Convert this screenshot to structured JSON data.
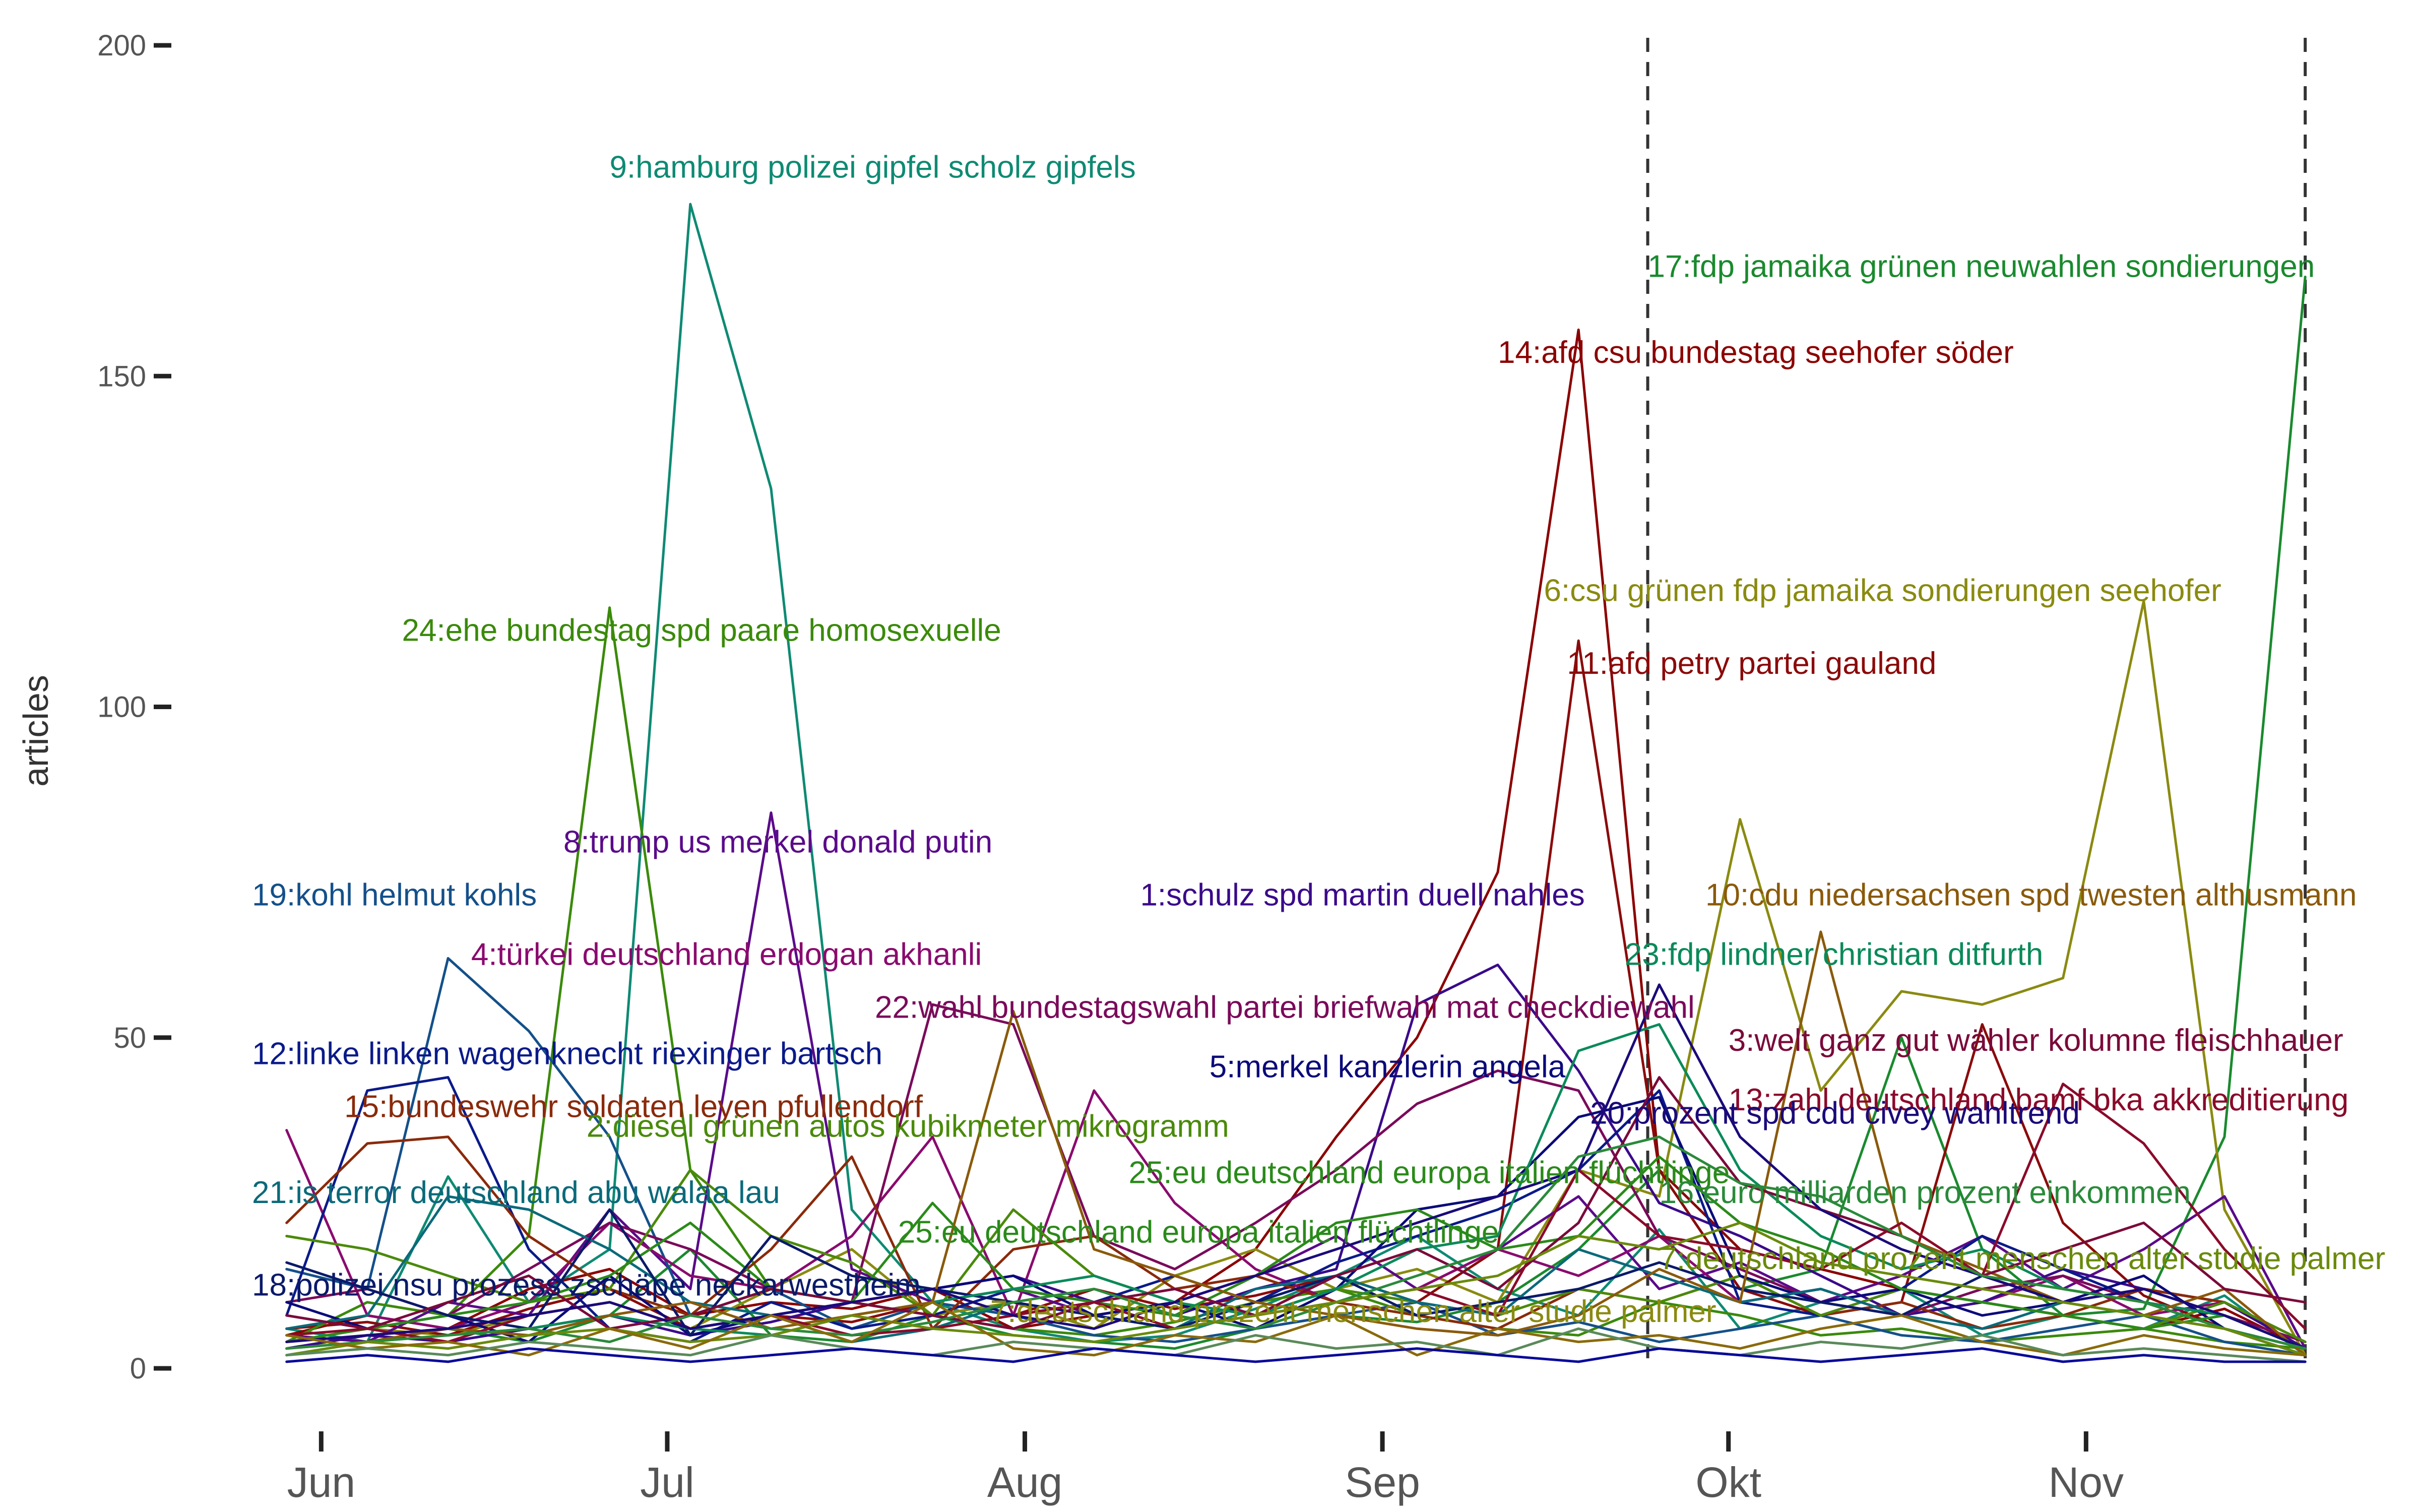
{
  "chart_data": {
    "type": "line",
    "ylabel": "articles",
    "xlabel": "",
    "ylim": [
      0,
      200
    ],
    "yticks": [
      0,
      50,
      100,
      150,
      200
    ],
    "xlim": [
      "2017-05-26",
      "2017-11-22"
    ],
    "xticks": [
      {
        "date": "2017-06-01",
        "label": "Jun"
      },
      {
        "date": "2017-07-01",
        "label": "Jul"
      },
      {
        "date": "2017-08-01",
        "label": "Aug"
      },
      {
        "date": "2017-09-01",
        "label": "Sep"
      },
      {
        "date": "2017-10-01",
        "label": "Okt"
      },
      {
        "date": "2017-11-01",
        "label": "Nov"
      }
    ],
    "vlines": [
      "2017-09-24",
      "2017-11-20"
    ],
    "grid": false,
    "dates": [
      "2017-05-29",
      "2017-06-05",
      "2017-06-12",
      "2017-06-19",
      "2017-06-26",
      "2017-07-03",
      "2017-07-10",
      "2017-07-17",
      "2017-07-24",
      "2017-07-31",
      "2017-08-07",
      "2017-08-14",
      "2017-08-21",
      "2017-08-28",
      "2017-09-04",
      "2017-09-11",
      "2017-09-18",
      "2017-09-25",
      "2017-10-02",
      "2017-10-09",
      "2017-10-16",
      "2017-10-23",
      "2017-10-30",
      "2017-11-06",
      "2017-11-13",
      "2017-11-20"
    ],
    "series": [
      {
        "id": 9,
        "color": "#0e8a73",
        "values": [
          6,
          4,
          29,
          10,
          18,
          176,
          133,
          24,
          10,
          6,
          4,
          5,
          9,
          14,
          20,
          12,
          8,
          21,
          6,
          10,
          12,
          5,
          8,
          6,
          11,
          2
        ]
      },
      {
        "id": 17,
        "color": "#1a8a2e",
        "values": [
          3,
          5,
          6,
          4,
          8,
          18,
          5,
          4,
          8,
          5,
          4,
          3,
          6,
          8,
          7,
          10,
          18,
          30,
          12,
          15,
          50,
          18,
          8,
          9,
          35,
          165
        ]
      },
      {
        "id": 14,
        "color": "#8b0000",
        "values": [
          5,
          8,
          6,
          12,
          15,
          8,
          10,
          9,
          12,
          6,
          8,
          10,
          18,
          35,
          50,
          75,
          157,
          30,
          18,
          15,
          12,
          10,
          8,
          6,
          9,
          3
        ]
      },
      {
        "id": 6,
        "color": "#8a8a10",
        "values": [
          4,
          6,
          5,
          8,
          10,
          6,
          12,
          18,
          8,
          10,
          6,
          14,
          18,
          12,
          15,
          10,
          30,
          26,
          83,
          42,
          57,
          55,
          59,
          116,
          24,
          2
        ]
      },
      {
        "id": 11,
        "color": "#8b0a0a",
        "values": [
          6,
          7,
          5,
          9,
          12,
          6,
          8,
          7,
          10,
          8,
          12,
          9,
          11,
          14,
          10,
          18,
          110,
          30,
          12,
          8,
          10,
          52,
          22,
          11,
          6,
          3
        ]
      },
      {
        "id": 24,
        "color": "#3a8a0a",
        "values": [
          4,
          10,
          8,
          20,
          115,
          30,
          12,
          10,
          8,
          6,
          5,
          7,
          10,
          12,
          8,
          6,
          5,
          10,
          8,
          5,
          6,
          4,
          5,
          6,
          4,
          3
        ]
      },
      {
        "id": 8,
        "color": "#5a0a8a",
        "values": [
          5,
          4,
          10,
          8,
          24,
          12,
          84,
          15,
          10,
          12,
          8,
          10,
          14,
          20,
          12,
          18,
          26,
          12,
          16,
          10,
          14,
          20,
          12,
          18,
          26,
          3
        ]
      },
      {
        "id": 19,
        "color": "#14508a",
        "values": [
          15,
          12,
          62,
          51,
          35,
          8,
          12,
          6,
          10,
          8,
          5,
          4,
          6,
          8,
          10,
          5,
          7,
          4,
          6,
          8,
          5,
          4,
          6,
          8,
          4,
          2
        ]
      },
      {
        "id": 4,
        "color": "#8a0a6e",
        "values": [
          36,
          8,
          6,
          10,
          22,
          14,
          12,
          20,
          35,
          8,
          42,
          25,
          15,
          10,
          12,
          18,
          14,
          20,
          10,
          12,
          8,
          10,
          14,
          8,
          10,
          3
        ]
      },
      {
        "id": 1,
        "color": "#3a0a8a",
        "values": [
          3,
          5,
          4,
          6,
          8,
          5,
          7,
          10,
          12,
          14,
          10,
          8,
          12,
          15,
          55,
          61,
          45,
          25,
          20,
          14,
          8,
          10,
          15,
          12,
          10,
          3
        ]
      },
      {
        "id": 22,
        "color": "#7a0a5a",
        "values": [
          10,
          12,
          8,
          15,
          22,
          18,
          12,
          10,
          55,
          52,
          20,
          15,
          22,
          30,
          40,
          45,
          42,
          20,
          15,
          10,
          8,
          12,
          14,
          10,
          8,
          4
        ]
      },
      {
        "id": 12,
        "color": "#0a1a8a",
        "values": [
          8,
          42,
          44,
          18,
          6,
          4,
          10,
          6,
          8,
          12,
          10,
          14,
          10,
          16,
          20,
          24,
          30,
          42,
          10,
          8,
          12,
          20,
          15,
          10,
          6,
          2
        ]
      },
      {
        "id": 15,
        "color": "#8a2a0a",
        "values": [
          22,
          34,
          35,
          20,
          12,
          8,
          18,
          32,
          6,
          18,
          20,
          12,
          14,
          10,
          8,
          6,
          12,
          10,
          14,
          8,
          10,
          6,
          8,
          12,
          10,
          4
        ]
      },
      {
        "id": 2,
        "color": "#4a8a0a",
        "values": [
          20,
          18,
          14,
          10,
          12,
          30,
          20,
          16,
          8,
          24,
          14,
          10,
          8,
          12,
          10,
          8,
          12,
          10,
          14,
          8,
          12,
          10,
          8,
          6,
          10,
          4
        ]
      },
      {
        "id": 5,
        "color": "#0a0a7a",
        "values": [
          10,
          6,
          8,
          4,
          14,
          5,
          8,
          10,
          12,
          14,
          8,
          10,
          6,
          12,
          24,
          26,
          38,
          41,
          14,
          10,
          12,
          8,
          10,
          14,
          6,
          2
        ]
      },
      {
        "id": 21,
        "color": "#0a6a7a",
        "values": [
          6,
          8,
          26,
          24,
          18,
          10,
          8,
          4,
          6,
          10,
          8,
          6,
          12,
          14,
          10,
          8,
          18,
          14,
          10,
          12,
          8,
          6,
          10,
          8,
          6,
          3
        ]
      },
      {
        "id": 25,
        "color": "#2a8a1a",
        "values": [
          4,
          6,
          8,
          10,
          14,
          22,
          12,
          10,
          25,
          12,
          10,
          8,
          14,
          22,
          24,
          18,
          20,
          32,
          22,
          18,
          12,
          10,
          8,
          6,
          8,
          3
        ]
      },
      {
        "id": 18,
        "color": "#0a1a6a",
        "values": [
          16,
          12,
          8,
          6,
          24,
          5,
          20,
          14,
          12,
          10,
          8,
          6,
          10,
          14,
          8,
          10,
          12,
          16,
          12,
          10,
          8,
          14,
          10,
          12,
          8,
          3
        ]
      },
      {
        "id": 23,
        "color": "#0a8a5a",
        "values": [
          2,
          4,
          5,
          6,
          8,
          6,
          5,
          8,
          10,
          12,
          14,
          10,
          8,
          12,
          18,
          20,
          48,
          52,
          30,
          20,
          15,
          18,
          12,
          10,
          8,
          3
        ]
      },
      {
        "id": 10,
        "color": "#8a5a0a",
        "values": [
          3,
          4,
          6,
          5,
          8,
          10,
          6,
          8,
          10,
          54,
          18,
          14,
          10,
          8,
          6,
          5,
          8,
          15,
          10,
          66,
          20,
          15,
          10,
          8,
          12,
          2
        ]
      },
      {
        "id": 3,
        "color": "#7a0a3a",
        "values": [
          8,
          6,
          10,
          14,
          6,
          8,
          12,
          10,
          8,
          6,
          10,
          12,
          8,
          14,
          18,
          12,
          22,
          44,
          28,
          24,
          20,
          14,
          18,
          22,
          12,
          10
        ]
      },
      {
        "id": 13,
        "color": "#8a0a2a",
        "values": [
          5,
          6,
          4,
          8,
          10,
          6,
          8,
          5,
          6,
          8,
          10,
          6,
          8,
          10,
          12,
          8,
          30,
          20,
          18,
          15,
          22,
          14,
          43,
          34,
          18,
          6
        ]
      },
      {
        "id": 20,
        "color": "#1a0a7a",
        "values": [
          4,
          5,
          6,
          8,
          10,
          6,
          8,
          10,
          12,
          8,
          6,
          10,
          14,
          18,
          22,
          26,
          30,
          58,
          35,
          24,
          18,
          14,
          10,
          12,
          8,
          3
        ]
      },
      {
        "id": 16,
        "color": "#2a8a3a",
        "values": [
          3,
          4,
          5,
          6,
          4,
          8,
          6,
          5,
          7,
          10,
          12,
          8,
          6,
          10,
          14,
          18,
          32,
          35,
          28,
          26,
          20,
          14,
          12,
          10,
          6,
          3
        ]
      },
      {
        "id": 7,
        "color": "#6a8a0a",
        "values": [
          2,
          4,
          3,
          5,
          6,
          4,
          5,
          8,
          6,
          5,
          4,
          6,
          8,
          10,
          12,
          14,
          20,
          18,
          22,
          16,
          14,
          12,
          10,
          8,
          6,
          2
        ]
      },
      {
        "id": 26,
        "color": "#8a6a0a",
        "values": [
          5,
          3,
          4,
          2,
          6,
          3,
          8,
          4,
          10,
          3,
          2,
          5,
          4,
          8,
          2,
          6,
          4,
          5,
          3,
          6,
          8,
          4,
          2,
          5,
          3,
          2
        ]
      },
      {
        "id": 27,
        "color": "#5a8a5a",
        "values": [
          2,
          3,
          2,
          4,
          3,
          2,
          5,
          3,
          2,
          4,
          3,
          2,
          5,
          3,
          4,
          2,
          6,
          3,
          2,
          4,
          3,
          5,
          2,
          3,
          2,
          1
        ]
      },
      {
        "id": 28,
        "color": "#0a0a9a",
        "values": [
          1,
          2,
          1,
          3,
          2,
          1,
          2,
          3,
          2,
          1,
          3,
          2,
          1,
          2,
          3,
          2,
          1,
          3,
          2,
          1,
          2,
          3,
          1,
          2,
          1,
          1
        ]
      }
    ],
    "annotations": [
      {
        "label": "9:hamburg polizei gipfel scholz gipfels",
        "color": "#0e8a73",
        "date": "2017-06-26",
        "y": 180,
        "anchor": "start"
      },
      {
        "label": "17:fdp jamaika grünen neuwahlen sondierungen",
        "color": "#1a8a2e",
        "date": "2017-09-24",
        "y": 165,
        "anchor": "start"
      },
      {
        "label": "14:afd csu bundestag seehofer söder",
        "color": "#8b0000",
        "date": "2017-09-11",
        "y": 152,
        "anchor": "start"
      },
      {
        "label": "6:csu grünen fdp jamaika sondierungen seehofer",
        "color": "#8a8a10",
        "date": "2017-09-15",
        "y": 116,
        "anchor": "start"
      },
      {
        "label": "24:ehe bundestag spd paare homosexuelle",
        "color": "#3a8a0a",
        "date": "2017-06-08",
        "y": 110,
        "anchor": "start"
      },
      {
        "label": "11:afd petry partei gauland",
        "color": "#8b0a0a",
        "date": "2017-09-17",
        "y": 105,
        "anchor": "start"
      },
      {
        "label": "8:trump us merkel donald putin",
        "color": "#5a0a8a",
        "date": "2017-06-22",
        "y": 78,
        "anchor": "start"
      },
      {
        "label": "19:kohl helmut kohls",
        "color": "#14508a",
        "date": "2017-05-26",
        "y": 70,
        "anchor": "start"
      },
      {
        "label": "1:schulz spd martin duell nahles",
        "color": "#3a0a8a",
        "date": "2017-08-11",
        "y": 70,
        "anchor": "start"
      },
      {
        "label": "10:cdu niedersachsen spd twesten althusmann",
        "color": "#8a5a0a",
        "date": "2017-09-29",
        "y": 70,
        "anchor": "start"
      },
      {
        "label": "4:türkei deutschland erdogan akhanli",
        "color": "#8a0a6e",
        "date": "2017-06-14",
        "y": 61,
        "anchor": "start"
      },
      {
        "label": "23:fdp lindner christian ditfurth",
        "color": "#0a8a5a",
        "date": "2017-09-22",
        "y": 61,
        "anchor": "start"
      },
      {
        "label": "22:wahl bundestagswahl partei briefwahl mat checkdiewahl",
        "color": "#7a0a5a",
        "date": "2017-07-19",
        "y": 53,
        "anchor": "start"
      },
      {
        "label": "12:linke linken wagenknecht riexinger bartsch",
        "color": "#0a1a8a",
        "date": "2017-05-26",
        "y": 46,
        "anchor": "start"
      },
      {
        "label": "3:welt ganz gut wähler kolumne fleischhauer",
        "color": "#7a0a3a",
        "date": "2017-10-01",
        "y": 48,
        "anchor": "start"
      },
      {
        "label": "5:merkel kanzlerin angela",
        "color": "#0a0a7a",
        "date": "2017-08-17",
        "y": 44,
        "anchor": "start"
      },
      {
        "label": "15:bundeswehr soldaten leyen pfullendorf",
        "color": "#8a2a0a",
        "date": "2017-06-03",
        "y": 38,
        "anchor": "start"
      },
      {
        "label": "13:zahl deutschland bamf bka akkreditierung",
        "color": "#8a0a2a",
        "date": "2017-10-01",
        "y": 39,
        "anchor": "start"
      },
      {
        "label": "20:prozent spd cdu civey wahltrend",
        "color": "#1a0a7a",
        "date": "2017-09-19",
        "y": 37,
        "anchor": "start"
      },
      {
        "label": "2:diesel grünen autos kubikmeter mikrogramm",
        "color": "#4a8a0a",
        "date": "2017-06-24",
        "y": 35,
        "anchor": "start"
      },
      {
        "label": "21:is terror deutschland abu walaa lau",
        "color": "#0a6a7a",
        "date": "2017-05-26",
        "y": 25,
        "anchor": "start"
      },
      {
        "label": "25:eu deutschland europa italien flüchtlinge",
        "color": "#2a8a1a",
        "date": "2017-08-10",
        "y": 28,
        "anchor": "start"
      },
      {
        "label": "16:euro milliarden prozent einkommen",
        "color": "#2a8a3a",
        "date": "2017-09-25",
        "y": 25,
        "anchor": "start"
      },
      {
        "label": "25:eu deutschland europa italien flüchtlinge",
        "color": "#2a8a1a",
        "date": "2017-07-21",
        "y": 19,
        "anchor": "start"
      },
      {
        "label": "7:deutschland prozent menschen alter studie palmer",
        "color": "#6a8a0a",
        "date": "2017-09-25",
        "y": 15,
        "anchor": "start"
      },
      {
        "label": "18:polizei nsu prozess zschäpe neckarwestheim",
        "color": "#0a1a6a",
        "date": "2017-05-26",
        "y": 11,
        "anchor": "start"
      },
      {
        "label": "7:deutschland prozent menschen alter studie palmer",
        "color": "#8a8a10",
        "date": "2017-07-29",
        "y": 7,
        "anchor": "start"
      }
    ]
  }
}
